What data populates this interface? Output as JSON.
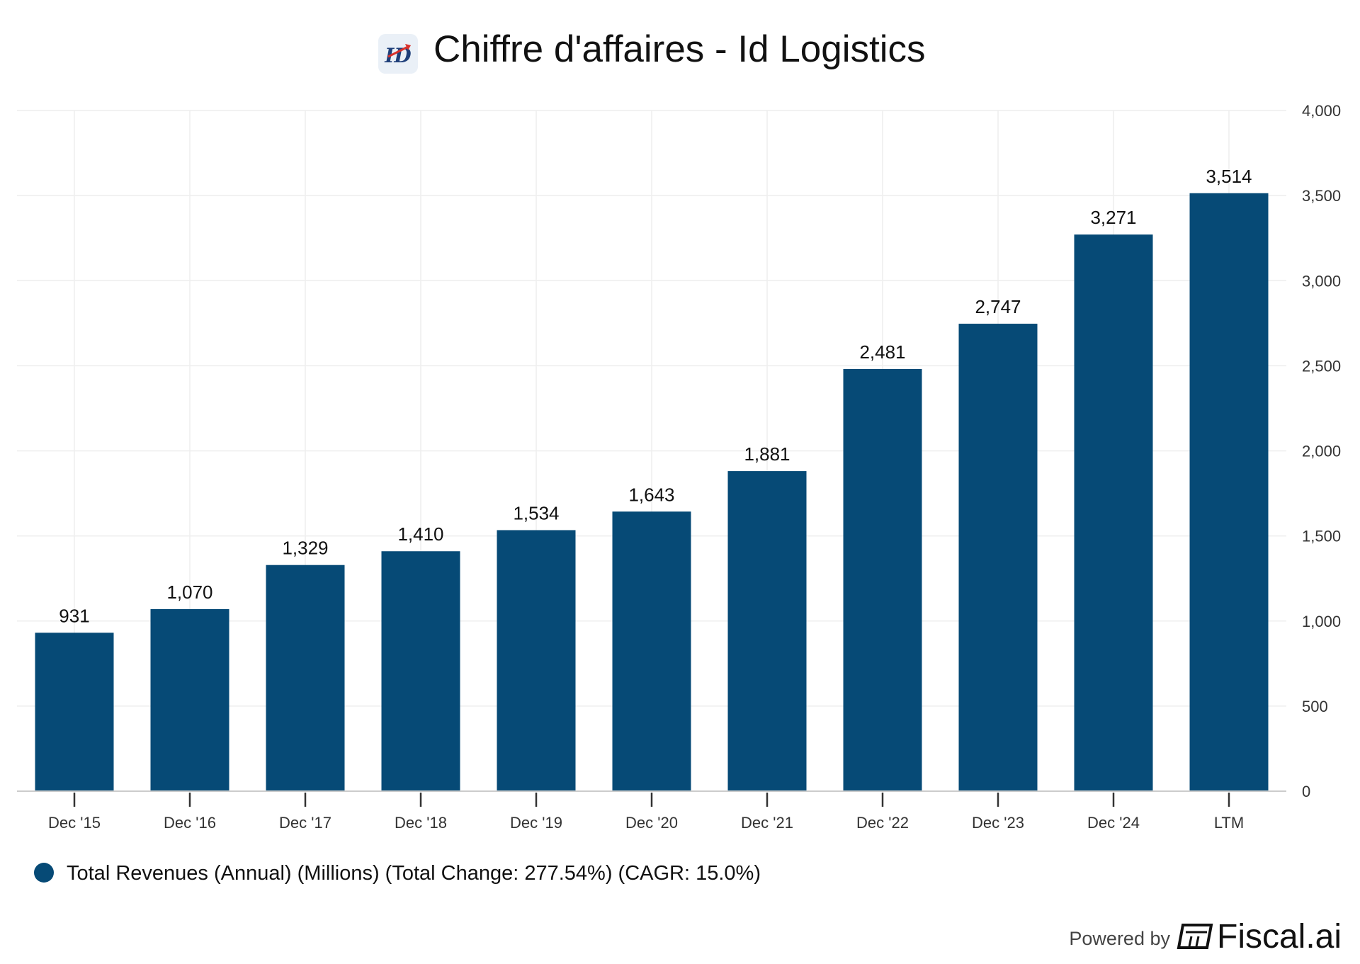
{
  "header": {
    "title": "Chiffre d'affaires - Id Logistics",
    "logo_text": "ID"
  },
  "chart_data": {
    "type": "bar",
    "title": "Chiffre d'affaires - Id Logistics",
    "categories": [
      "Dec '15",
      "Dec '16",
      "Dec '17",
      "Dec '18",
      "Dec '19",
      "Dec '20",
      "Dec '21",
      "Dec '22",
      "Dec '23",
      "Dec '24",
      "LTM"
    ],
    "series": [
      {
        "name": "Total Revenues (Annual) (Millions) (Total Change: 277.54%) (CAGR: 15.0%)",
        "values": [
          931,
          1070,
          1329,
          1410,
          1534,
          1643,
          1881,
          2481,
          2747,
          3271,
          3514
        ],
        "value_labels": [
          "931",
          "1,070",
          "1,329",
          "1,410",
          "1,534",
          "1,643",
          "1,881",
          "2,481",
          "2,747",
          "3,271",
          "3,514"
        ],
        "color": "#064a76"
      }
    ],
    "ylim": [
      0,
      4000
    ],
    "y_ticks": [
      0,
      500,
      1000,
      1500,
      2000,
      2500,
      3000,
      3500,
      4000
    ],
    "y_tick_labels": [
      "0",
      "500",
      "1,000",
      "1,500",
      "2,000",
      "2,500",
      "3,000",
      "3,500",
      "4,000"
    ],
    "y_axis_side": "right",
    "grid": true,
    "legend_position": "bottom-left",
    "xlabel": "",
    "ylabel": ""
  },
  "legend": {
    "label": "Total Revenues (Annual) (Millions) (Total Change: 277.54%) (CAGR: 15.0%)",
    "color": "#064a76"
  },
  "footer": {
    "powered_by": "Powered by",
    "brand": "Fiscal.ai",
    "brand_icon": "fiscal-logo-icon"
  },
  "colors": {
    "bar": "#064a76",
    "grid": "#eeeeee",
    "axis": "#cccccc",
    "logo_bg": "#eaf0f7",
    "logo_accent": "#d9312b"
  }
}
